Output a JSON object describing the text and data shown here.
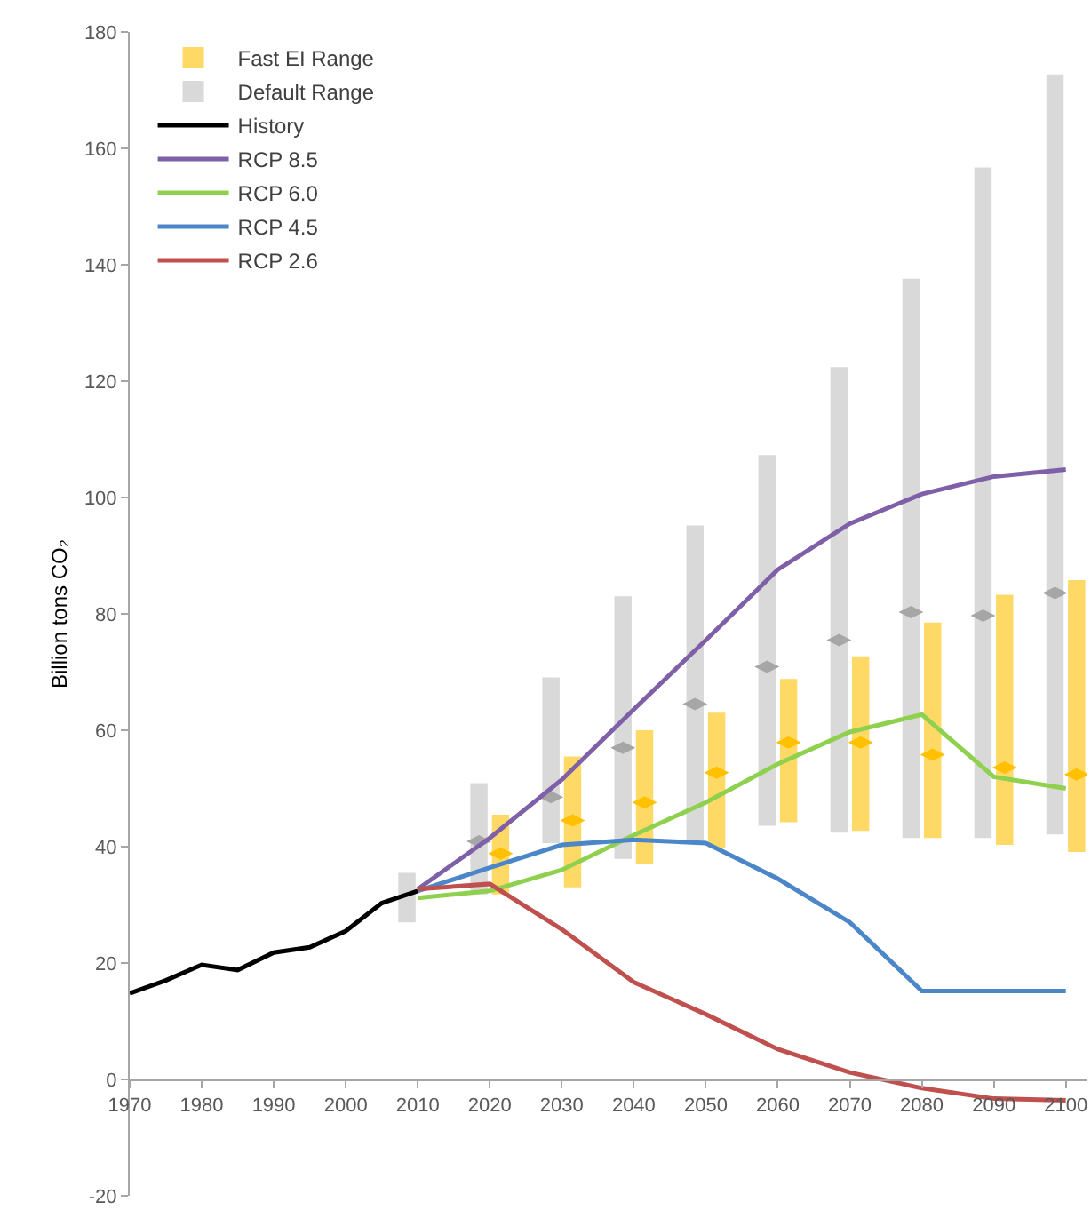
{
  "chart_data": {
    "type": "line",
    "ylabel": "Billion tons CO₂",
    "x": [
      2010,
      2020,
      2030,
      2040,
      2050,
      2060,
      2070,
      2080,
      2090,
      2100
    ],
    "series": [
      {
        "name": "Fast EI Range",
        "type": "bar",
        "color": "#ffd966",
        "x": [
          2021.5,
          2031.5,
          2041.5,
          2051.5,
          2061.5,
          2071.5,
          2081.5,
          2091.5,
          2101.5
        ],
        "base": [
          31.8,
          33,
          37,
          39.7,
          44.2,
          42.7,
          41.5,
          40.3,
          39.1
        ],
        "values": [
          13.7,
          22.5,
          23,
          23.3,
          24.6,
          30,
          37,
          43,
          46.7
        ]
      },
      {
        "name": "Default Range",
        "type": "bar",
        "color": "#d9d9d9",
        "x": [
          2008.5,
          2018.5,
          2028.5,
          2038.5,
          2048.5,
          2058.5,
          2068.5,
          2078.5,
          2088.5,
          2098.5
        ],
        "base": [
          27,
          31.8,
          40.6,
          37.9,
          40.9,
          43.6,
          42.4,
          41.5,
          41.5,
          42.1
        ],
        "values": [
          8.5,
          19.1,
          28.5,
          45.1,
          54.3,
          63.7,
          80,
          96.1,
          115.2,
          130.6
        ]
      },
      {
        "type": "scatter",
        "marker": "diamond",
        "color": "#ffc000",
        "x": [
          2021.5,
          2031.5,
          2041.5,
          2051.5,
          2061.5,
          2071.5,
          2081.5,
          2091.5,
          2101.5
        ],
        "values": [
          38.8,
          44.5,
          47.6,
          52.7,
          57.9,
          57.9,
          55.8,
          53.6,
          52.4
        ]
      },
      {
        "type": "scatter",
        "marker": "diamond",
        "color": "#a6a6a6",
        "x": [
          2018.5,
          2028.5,
          2038.5,
          2048.5,
          2058.5,
          2068.5,
          2078.5,
          2088.5,
          2098.5
        ],
        "values": [
          40.9,
          48.5,
          57,
          64.5,
          70.9,
          75.5,
          80.3,
          79.7,
          83.6
        ]
      },
      {
        "name": "History",
        "color": "#000000",
        "x": [
          1970,
          1975,
          1980,
          1985,
          1990,
          1995,
          2000,
          2005,
          2010
        ],
        "values": [
          14.8,
          17,
          19.7,
          18.8,
          21.8,
          22.7,
          25.5,
          30.3,
          32.4
        ]
      },
      {
        "name": "RCP 8.5",
        "color": "#7f5fa8",
        "values": [
          32.7,
          41.5,
          51.5,
          63.6,
          75.5,
          87.6,
          95.5,
          100.6,
          103.6,
          104.8
        ]
      },
      {
        "name": "RCP 6.0",
        "color": "#8fd14f",
        "values": [
          31.2,
          32.4,
          36,
          42,
          47.6,
          54.2,
          59.7,
          62.7,
          52,
          50
        ]
      },
      {
        "name": "RCP 4.5",
        "color": "#4a86c8",
        "values": [
          32.4,
          36.4,
          40.3,
          41.2,
          40.6,
          34.5,
          27,
          15.2,
          15.2,
          15.2
        ]
      },
      {
        "name": "RCP 2.6",
        "color": "#c0504d",
        "values": [
          32.7,
          33.6,
          25.8,
          16.7,
          11.2,
          5.2,
          1.2,
          -1.5,
          -3.3,
          -3.6
        ]
      }
    ],
    "xlim": [
      1970,
      2103
    ],
    "xticks": [
      1970,
      1980,
      1990,
      2000,
      2010,
      2020,
      2030,
      2040,
      2050,
      2060,
      2070,
      2080,
      2090,
      2100
    ],
    "ylim": [
      -20,
      180
    ],
    "yticks": [
      -20,
      0,
      20,
      40,
      60,
      80,
      100,
      120,
      140,
      160,
      180
    ],
    "legend": "top left"
  }
}
